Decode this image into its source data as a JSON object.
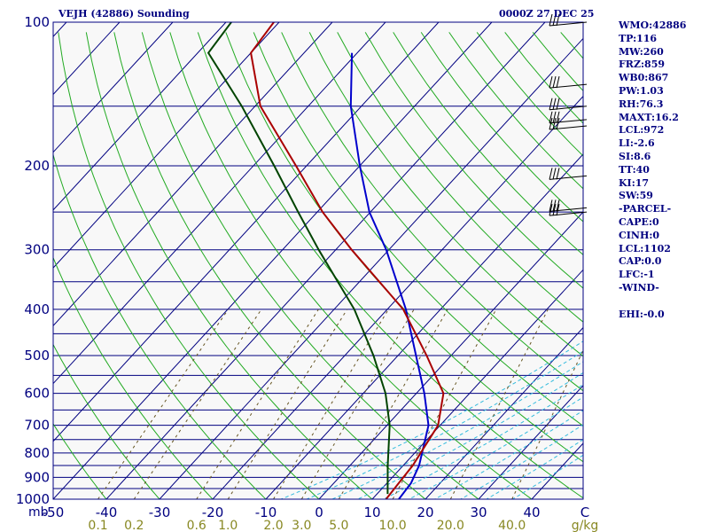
{
  "header": {
    "station_title": "VEJH (42886) Sounding",
    "valid_time": "0000Z 27 DEC 25"
  },
  "colors": {
    "isobar": "#000080",
    "isotherm": "#000080",
    "dry_adiabat": "#22aa22",
    "moist_adiabat": "#33bbdd",
    "mixing_ratio": "#665522",
    "temperature": "#0000cc",
    "dewpoint": "#aa0000",
    "parcel": "#004400",
    "wind_barb": "#000000",
    "axis_text": "#000080",
    "mixing_text": "#888822"
  },
  "stats": [
    "WMO:42886",
    "TP:116",
    "MW:260",
    "FRZ:859",
    "WB0:867",
    "PW:1.03",
    "RH:76.3",
    "MAXT:16.2",
    "LCL:972",
    "LI:-2.6",
    "SI:8.6",
    "TT:40",
    "KI:17",
    "SW:59",
    "-PARCEL-",
    "CAPE:0",
    "CINH:0",
    "LCL:1102",
    "CAP:0.0",
    "LFC:-1",
    "-WIND-",
    "",
    "EHI:-0.0"
  ],
  "chart_data": {
    "type": "line",
    "diagram": "skew-T log-P",
    "x_unit": "C",
    "y_unit": "mb",
    "pressure_range": [
      1000,
      100
    ],
    "temperature_range": [
      -50,
      50
    ],
    "pressure_ticks": [
      100,
      200,
      300,
      400,
      500,
      600,
      700,
      800,
      900,
      1000
    ],
    "pressure_tick_labels": [
      "100",
      "200",
      "300",
      "400",
      "500",
      "600",
      "700",
      "800",
      "900",
      "1000"
    ],
    "pressure_unit_label": "mb",
    "temperature_ticks": [
      -50,
      -40,
      -30,
      -20,
      -10,
      0,
      10,
      20,
      30,
      40,
      50
    ],
    "temperature_tick_labels": [
      "-50",
      "-40",
      "-30",
      "-20",
      "-10",
      "0",
      "10",
      "20",
      "30",
      "40",
      "C"
    ],
    "mixing_ratio_ticks": [
      0.1,
      0.2,
      0.6,
      1.0,
      2.0,
      3.0,
      5.0,
      10.0,
      20.0,
      40.0
    ],
    "mixing_ratio_tick_labels": [
      "0.1",
      "0.2",
      "0.6",
      "1.0",
      "2.0",
      "3.0",
      "5.0",
      "10.0",
      "20.0",
      "40.0"
    ],
    "mixing_ratio_unit_label": "g/kg",
    "isobars": [
      100,
      150,
      200,
      250,
      300,
      350,
      400,
      450,
      500,
      550,
      600,
      650,
      700,
      750,
      800,
      850,
      900,
      950,
      1000
    ],
    "series": [
      {
        "key": "temperature",
        "points": [
          [
            1000,
            15
          ],
          [
            925,
            14.5
          ],
          [
            850,
            13
          ],
          [
            700,
            7.8
          ],
          [
            600,
            1.5
          ],
          [
            500,
            -6.6
          ],
          [
            400,
            -16.5
          ],
          [
            300,
            -30.5
          ],
          [
            250,
            -40.2
          ],
          [
            200,
            -50
          ],
          [
            150,
            -62
          ],
          [
            116,
            -71
          ]
        ]
      },
      {
        "key": "dewpoint",
        "points": [
          [
            1000,
            12.6
          ],
          [
            925,
            12.2
          ],
          [
            850,
            11.8
          ],
          [
            700,
            9.6
          ],
          [
            600,
            5.1
          ],
          [
            500,
            -4.6
          ],
          [
            400,
            -17
          ],
          [
            300,
            -37
          ],
          [
            250,
            -49
          ],
          [
            200,
            -62
          ],
          [
            150,
            -79
          ],
          [
            116,
            -90
          ],
          [
            100,
            -91
          ]
        ]
      },
      {
        "key": "parcel",
        "points": [
          [
            975,
            12
          ],
          [
            850,
            7.1
          ],
          [
            700,
            0.5
          ],
          [
            600,
            -5.8
          ],
          [
            500,
            -14.6
          ],
          [
            400,
            -26.2
          ],
          [
            300,
            -43.2
          ],
          [
            250,
            -53.6
          ],
          [
            200,
            -66.1
          ],
          [
            150,
            -82.5
          ],
          [
            116,
            -98
          ],
          [
            100,
            -99
          ]
        ]
      }
    ],
    "wind_barbs_mb": [
      100,
      135,
      150,
      160,
      165,
      210,
      245,
      250
    ]
  }
}
